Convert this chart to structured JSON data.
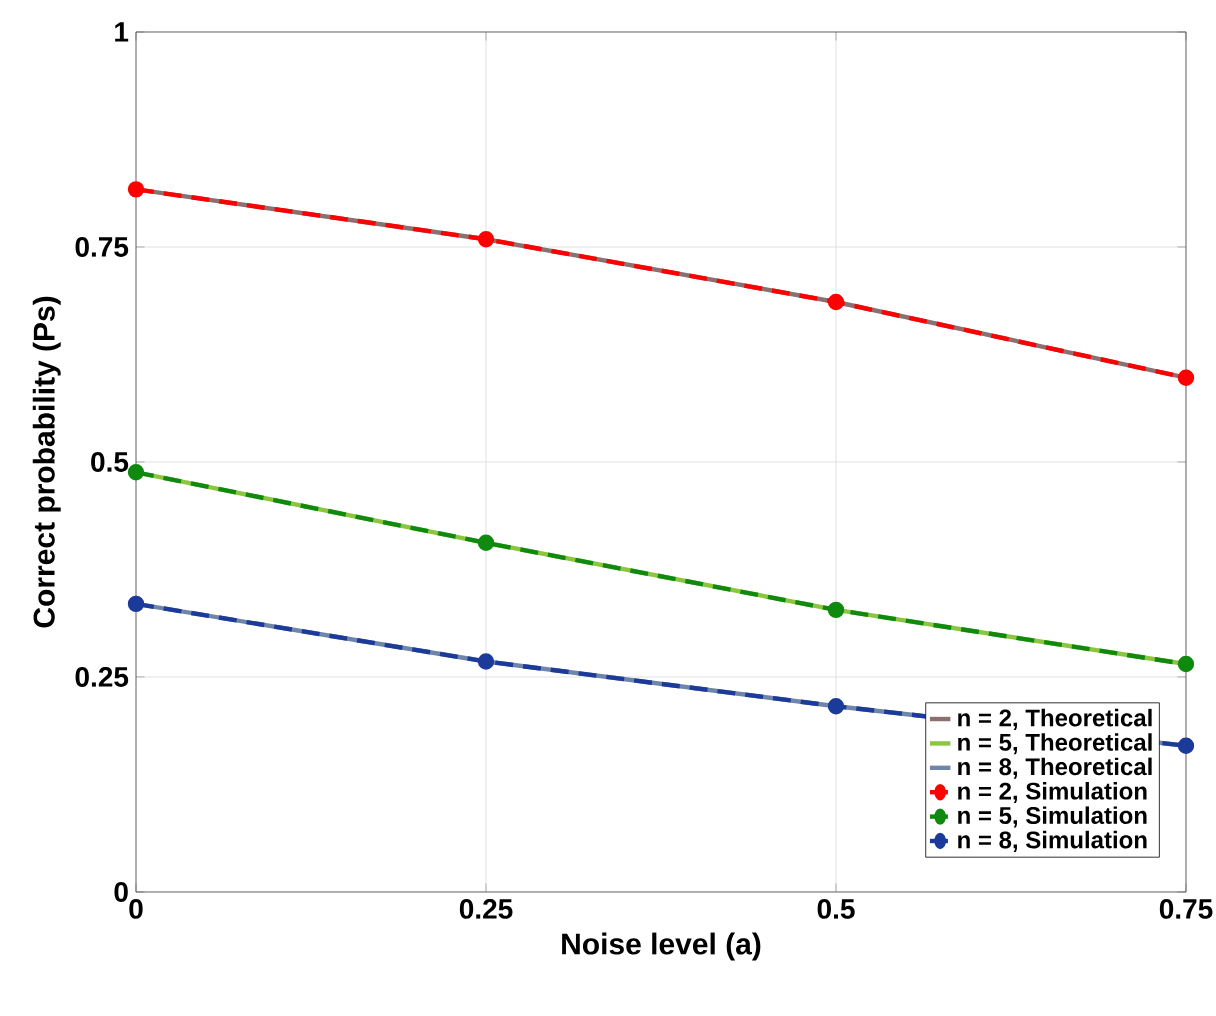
{
  "chart_data": {
    "type": "line",
    "xlabel": "Noise level (a)",
    "ylabel": "Correct probability (Ps)",
    "x": [
      0,
      0.25,
      0.5,
      0.75
    ],
    "xlim": [
      0,
      0.75
    ],
    "ylim": [
      0,
      1
    ],
    "xticks": [
      0,
      0.25,
      0.5,
      0.75
    ],
    "yticks": [
      0,
      0.25,
      0.5,
      0.75,
      1
    ],
    "grid": true,
    "legend": "bottom right",
    "series": [
      {
        "name": "n = 2, Theoretical",
        "color": "#8c6f6f",
        "values": [
          0.817,
          0.759,
          0.686,
          0.598
        ],
        "marker": "none",
        "line_style": "solid"
      },
      {
        "name": "n = 5, Theoretical",
        "color": "#8cc63f",
        "values": [
          0.488,
          0.406,
          0.328,
          0.265
        ],
        "marker": "none",
        "line_style": "solid"
      },
      {
        "name": "n = 8, Theoretical",
        "color": "#6f86a8",
        "values": [
          0.335,
          0.268,
          0.216,
          0.17
        ],
        "marker": "none",
        "line_style": "solid"
      },
      {
        "name": "n = 2, Simulation",
        "color": "#ff0000",
        "values": [
          0.817,
          0.759,
          0.686,
          0.598
        ],
        "marker": "circle",
        "line_style": "dashed"
      },
      {
        "name": "n = 5, Simulation",
        "color": "#0f8a0f",
        "values": [
          0.488,
          0.406,
          0.328,
          0.265
        ],
        "marker": "circle",
        "line_style": "dashed"
      },
      {
        "name": "n = 8, Simulation",
        "color": "#1c3a9a",
        "values": [
          0.335,
          0.268,
          0.216,
          0.17
        ],
        "marker": "circle",
        "line_style": "dashed"
      }
    ]
  }
}
